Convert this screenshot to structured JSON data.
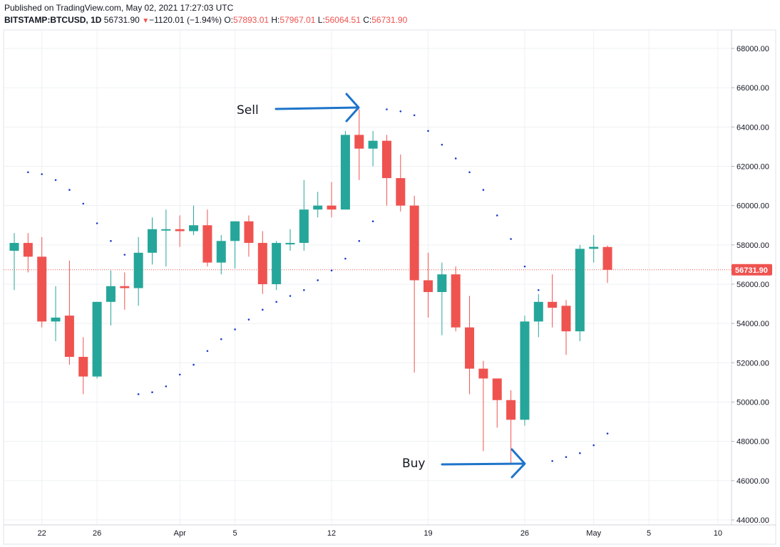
{
  "header": {
    "published": "Published on TradingView.com, May 02, 2021 17:27:03 UTC",
    "symbol": "BITSTAMP:BTCUSD, 1D",
    "last": "56731.90",
    "change": "−1120.01 (−1.94%)",
    "o_label": "O:",
    "o": "57893.01",
    "h_label": "H:",
    "h": "57967.01",
    "l_label": "L:",
    "l": "56064.51",
    "c_label": "C:",
    "c": "56731.90"
  },
  "annotations": {
    "sell": "Sell",
    "buy": "Buy"
  },
  "price_badge": "56731.90",
  "colors": {
    "up": "#26a69a",
    "down": "#ef5350",
    "sar": "#1a3ec9",
    "arrow": "#1e74c9",
    "grid": "#eef0f3"
  },
  "chart_data": {
    "type": "candlestick",
    "ylim": [
      44000,
      68000
    ],
    "y_ticks": [
      "68000.00",
      "66000.00",
      "64000.00",
      "62000.00",
      "60000.00",
      "58000.00",
      "56000.00",
      "54000.00",
      "52000.00",
      "50000.00",
      "48000.00",
      "46000.00",
      "44000.00"
    ],
    "x_ticks": [
      {
        "label": "22",
        "i": 2
      },
      {
        "label": "26",
        "i": 6
      },
      {
        "label": "Apr",
        "i": 12
      },
      {
        "label": "5",
        "i": 16
      },
      {
        "label": "12",
        "i": 23
      },
      {
        "label": "19",
        "i": 30
      },
      {
        "label": "26",
        "i": 37
      },
      {
        "label": "May",
        "i": 42
      },
      {
        "label": "5",
        "i": 46
      },
      {
        "label": "10",
        "i": 51
      }
    ],
    "candles": [
      {
        "date": "Mar 20",
        "o": 57700,
        "h": 58600,
        "l": 55700,
        "c": 58100
      },
      {
        "date": "Mar 21",
        "o": 58100,
        "h": 58600,
        "l": 56600,
        "c": 57400
      },
      {
        "date": "Mar 22",
        "o": 57400,
        "h": 58400,
        "l": 53800,
        "c": 54100
      },
      {
        "date": "Mar 23",
        "o": 54100,
        "h": 55900,
        "l": 53100,
        "c": 54300
      },
      {
        "date": "Mar 24",
        "o": 54400,
        "h": 57200,
        "l": 51900,
        "c": 52300
      },
      {
        "date": "Mar 25",
        "o": 52300,
        "h": 53300,
        "l": 50400,
        "c": 51300
      },
      {
        "date": "Mar 26",
        "o": 51300,
        "h": 55100,
        "l": 51200,
        "c": 55100
      },
      {
        "date": "Mar 27",
        "o": 55100,
        "h": 56700,
        "l": 53900,
        "c": 55900
      },
      {
        "date": "Mar 28",
        "o": 55900,
        "h": 56600,
        "l": 54700,
        "c": 55800
      },
      {
        "date": "Mar 29",
        "o": 55800,
        "h": 58400,
        "l": 54900,
        "c": 57600
      },
      {
        "date": "Mar 30",
        "o": 57600,
        "h": 59400,
        "l": 57000,
        "c": 58800
      },
      {
        "date": "Mar 31",
        "o": 58800,
        "h": 59800,
        "l": 56900,
        "c": 58800
      },
      {
        "date": "Apr 1",
        "o": 58800,
        "h": 59500,
        "l": 57900,
        "c": 58700
      },
      {
        "date": "Apr 2",
        "o": 58700,
        "h": 60000,
        "l": 58500,
        "c": 59000
      },
      {
        "date": "Apr 3",
        "o": 59000,
        "h": 59800,
        "l": 56900,
        "c": 57100
      },
      {
        "date": "Apr 4",
        "o": 57100,
        "h": 58500,
        "l": 56500,
        "c": 58200
      },
      {
        "date": "Apr 5",
        "o": 58200,
        "h": 59200,
        "l": 56800,
        "c": 59200
      },
      {
        "date": "Apr 6",
        "o": 59200,
        "h": 59500,
        "l": 57400,
        "c": 58100
      },
      {
        "date": "Apr 7",
        "o": 58100,
        "h": 58700,
        "l": 55500,
        "c": 56000
      },
      {
        "date": "Apr 8",
        "o": 56000,
        "h": 58200,
        "l": 55700,
        "c": 58100
      },
      {
        "date": "Apr 9",
        "o": 58100,
        "h": 58800,
        "l": 57700,
        "c": 58100
      },
      {
        "date": "Apr 10",
        "o": 58100,
        "h": 61300,
        "l": 57700,
        "c": 59800
      },
      {
        "date": "Apr 11",
        "o": 59800,
        "h": 60700,
        "l": 59400,
        "c": 60000
      },
      {
        "date": "Apr 12",
        "o": 60000,
        "h": 61200,
        "l": 59400,
        "c": 59800
      },
      {
        "date": "Apr 13",
        "o": 59800,
        "h": 63800,
        "l": 59800,
        "c": 63600
      },
      {
        "date": "Apr 14",
        "o": 63600,
        "h": 64900,
        "l": 61300,
        "c": 62900
      },
      {
        "date": "Apr 15",
        "o": 62900,
        "h": 63800,
        "l": 62000,
        "c": 63300
      },
      {
        "date": "Apr 16",
        "o": 63300,
        "h": 63600,
        "l": 60000,
        "c": 61400
      },
      {
        "date": "Apr 17",
        "o": 61400,
        "h": 62600,
        "l": 59700,
        "c": 60000
      },
      {
        "date": "Apr 18",
        "o": 60000,
        "h": 60500,
        "l": 51500,
        "c": 56200
      },
      {
        "date": "Apr 19",
        "o": 56200,
        "h": 57600,
        "l": 54300,
        "c": 55600
      },
      {
        "date": "Apr 20",
        "o": 55600,
        "h": 57100,
        "l": 53400,
        "c": 56500
      },
      {
        "date": "Apr 21",
        "o": 56500,
        "h": 56900,
        "l": 53600,
        "c": 53800
      },
      {
        "date": "Apr 22",
        "o": 53800,
        "h": 55400,
        "l": 50400,
        "c": 51700
      },
      {
        "date": "Apr 23",
        "o": 51700,
        "h": 52100,
        "l": 47500,
        "c": 51200
      },
      {
        "date": "Apr 24",
        "o": 51200,
        "h": 51200,
        "l": 48700,
        "c": 50100
      },
      {
        "date": "Apr 25",
        "o": 50100,
        "h": 50600,
        "l": 46900,
        "c": 49100
      },
      {
        "date": "Apr 26",
        "o": 49100,
        "h": 54400,
        "l": 48800,
        "c": 54100
      },
      {
        "date": "Apr 27",
        "o": 54100,
        "h": 55500,
        "l": 53300,
        "c": 55100
      },
      {
        "date": "Apr 28",
        "o": 55100,
        "h": 56500,
        "l": 53800,
        "c": 54800
      },
      {
        "date": "Apr 29",
        "o": 54900,
        "h": 55200,
        "l": 52400,
        "c": 53600
      },
      {
        "date": "Apr 30",
        "o": 53600,
        "h": 58000,
        "l": 53100,
        "c": 57800
      },
      {
        "date": "May 1",
        "o": 57800,
        "h": 58500,
        "l": 57100,
        "c": 57900
      },
      {
        "date": "May 2",
        "o": 57893.01,
        "h": 57967.01,
        "l": 56064.51,
        "c": 56731.9
      }
    ],
    "parabolic_sar": [
      {
        "i": 1,
        "v": 61700
      },
      {
        "i": 2,
        "v": 61600
      },
      {
        "i": 3,
        "v": 61300
      },
      {
        "i": 4,
        "v": 60800
      },
      {
        "i": 5,
        "v": 60100
      },
      {
        "i": 6,
        "v": 59100
      },
      {
        "i": 7,
        "v": 58200
      },
      {
        "i": 8,
        "v": 57500
      },
      {
        "i": 9,
        "v": 50400
      },
      {
        "i": 10,
        "v": 50500
      },
      {
        "i": 11,
        "v": 50800
      },
      {
        "i": 12,
        "v": 51400
      },
      {
        "i": 13,
        "v": 51900
      },
      {
        "i": 14,
        "v": 52600
      },
      {
        "i": 15,
        "v": 53200
      },
      {
        "i": 16,
        "v": 53700
      },
      {
        "i": 17,
        "v": 54200
      },
      {
        "i": 18,
        "v": 54700
      },
      {
        "i": 19,
        "v": 55100
      },
      {
        "i": 20,
        "v": 55400
      },
      {
        "i": 21,
        "v": 55700
      },
      {
        "i": 22,
        "v": 56200
      },
      {
        "i": 23,
        "v": 56700
      },
      {
        "i": 24,
        "v": 57300
      },
      {
        "i": 25,
        "v": 58200
      },
      {
        "i": 26,
        "v": 59200
      },
      {
        "i": 27,
        "v": 64900
      },
      {
        "i": 28,
        "v": 64800
      },
      {
        "i": 29,
        "v": 64600
      },
      {
        "i": 30,
        "v": 63800
      },
      {
        "i": 31,
        "v": 63100
      },
      {
        "i": 32,
        "v": 62400
      },
      {
        "i": 33,
        "v": 61700
      },
      {
        "i": 34,
        "v": 60800
      },
      {
        "i": 35,
        "v": 59500
      },
      {
        "i": 36,
        "v": 58300
      },
      {
        "i": 37,
        "v": 56900
      },
      {
        "i": 38,
        "v": 55700
      },
      {
        "i": 39,
        "v": 47000
      },
      {
        "i": 40,
        "v": 47200
      },
      {
        "i": 41,
        "v": 47400
      },
      {
        "i": 42,
        "v": 47800
      },
      {
        "i": 43,
        "v": 48400
      }
    ]
  }
}
